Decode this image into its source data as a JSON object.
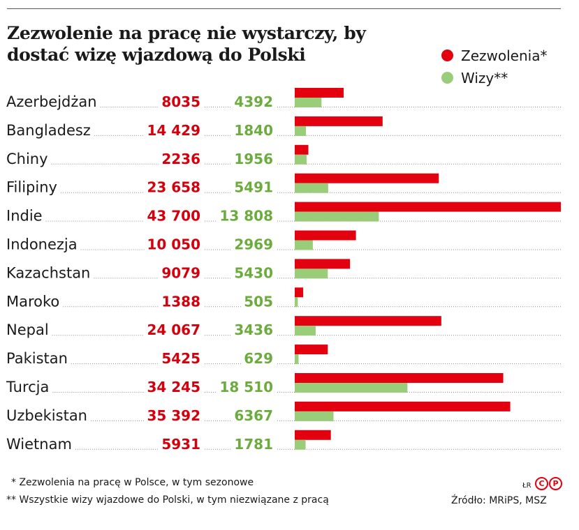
{
  "title": "Zezwolenie na pracę nie wystarczy, by dostać wizę wjazdową do Polski",
  "legend": {
    "permits_label": "Zezwolenia*",
    "visas_label": "Wizy**"
  },
  "colors": {
    "permits": "#e3000f",
    "visas": "#9acd7a",
    "permits_text": "#d4000e",
    "visas_text": "#6cac3e"
  },
  "chart_data": {
    "type": "bar",
    "orientation": "horizontal",
    "categories": [
      "Azerbejdżan",
      "Bangladesz",
      "Chiny",
      "Filipiny",
      "Indie",
      "Indonezja",
      "Kazachstan",
      "Maroko",
      "Nepal",
      "Pakistan",
      "Turcja",
      "Uzbekistan",
      "Wietnam"
    ],
    "labels_permits": [
      "8035",
      "14 429",
      "2236",
      "23 658",
      "43 700",
      "10 050",
      "9079",
      "1388",
      "24 067",
      "5425",
      "34 245",
      "35 392",
      "5931"
    ],
    "labels_visas": [
      "4392",
      "1840",
      "1956",
      "5491",
      "13 808",
      "2969",
      "5430",
      "505",
      "3436",
      "629",
      "18 510",
      "6367",
      "1781"
    ],
    "series": [
      {
        "name": "Zezwolenia*",
        "values": [
          8035,
          14429,
          2236,
          23658,
          43700,
          10050,
          9079,
          1388,
          24067,
          5425,
          34245,
          35392,
          5931
        ]
      },
      {
        "name": "Wizy**",
        "values": [
          4392,
          1840,
          1956,
          5491,
          13808,
          2969,
          5430,
          505,
          3436,
          629,
          18510,
          6367,
          1781
        ]
      }
    ],
    "xlim": [
      0,
      43700
    ],
    "grid": false,
    "legend_position": "top-right"
  },
  "footnotes": {
    "permits": "* Zezwolenia na pracę w Polsce, w tym sezonowe",
    "visas": "** Wszystkie wizy wjazdowe do Polski, w tym niezwiązane z pracą"
  },
  "credit": {
    "initials": "ŁR",
    "badge_c": "C",
    "badge_p": "P"
  },
  "source": "Źródło: MRiPS, MSZ"
}
